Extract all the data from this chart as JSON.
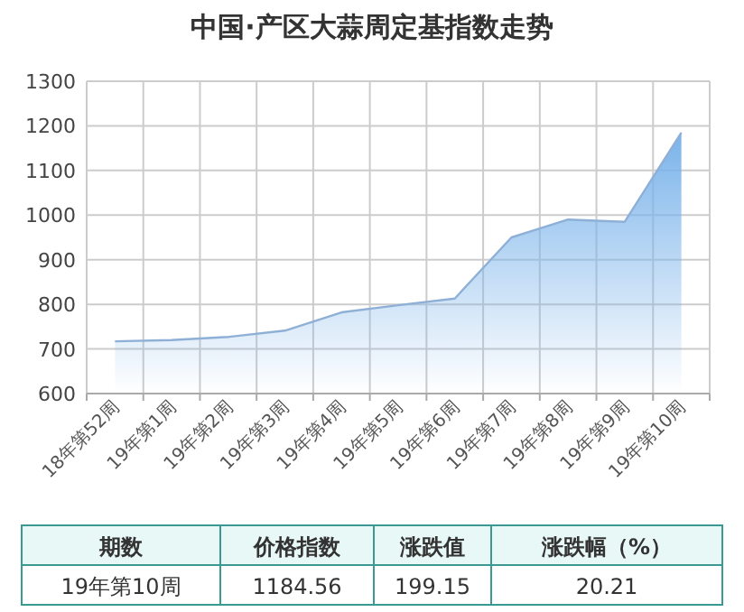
{
  "chart_data": {
    "type": "area",
    "title": "中国·产区大蒜周定基指数走势",
    "categories": [
      "18年第52周",
      "19年第1周",
      "19年第2周",
      "19年第3周",
      "19年第4周",
      "19年第5周",
      "19年第6周",
      "19年第7周",
      "19年第8周",
      "19年第9周",
      "19年第10周"
    ],
    "series": [
      {
        "color": "#7ab3ea",
        "values": [
          717,
          720,
          727,
          741,
          782,
          798,
          813,
          950,
          990,
          985,
          1185
        ]
      }
    ],
    "ylim": [
      600,
      1300
    ],
    "yticks": [
      600,
      700,
      800,
      900,
      1000,
      1100,
      1200,
      1300
    ],
    "grid": true,
    "annotations": [
      "期数",
      "价格指数",
      "涨跌值",
      "涨跌幅（%）",
      "19年第10周",
      "1184.56",
      "199.15",
      "20.21"
    ]
  }
}
